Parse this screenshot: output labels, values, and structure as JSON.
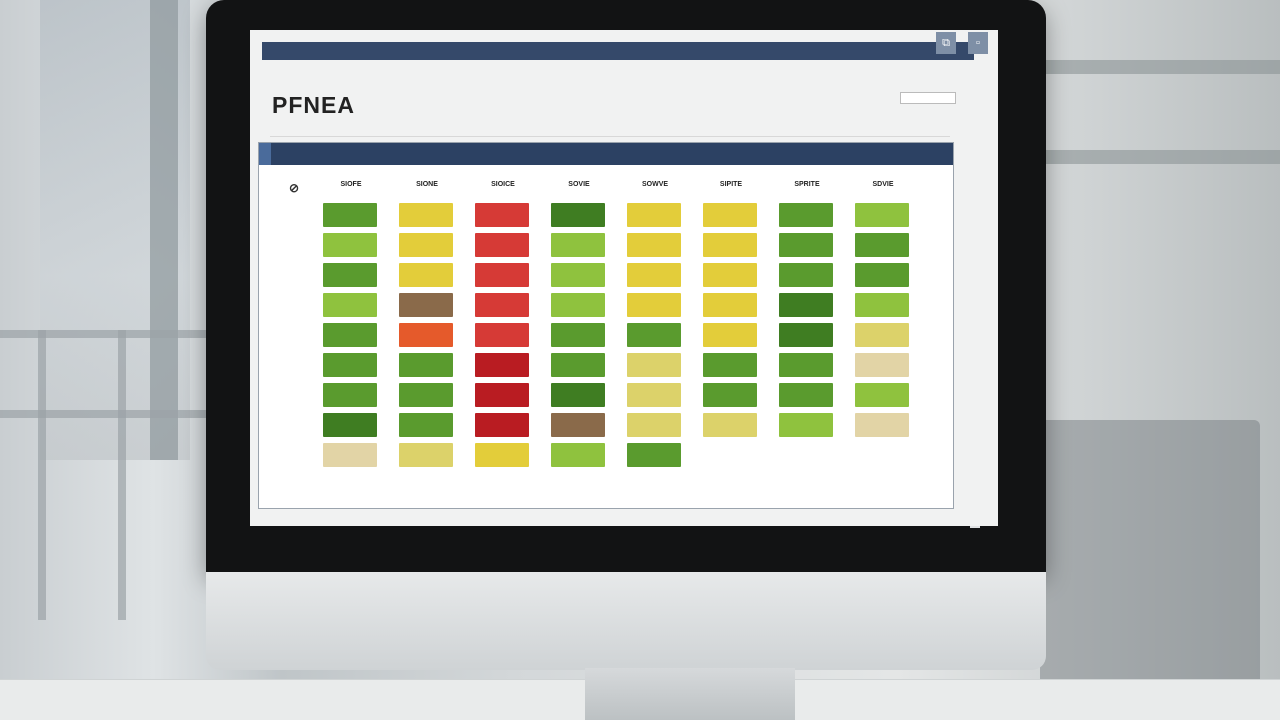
{
  "app": {
    "title": "PFNEA",
    "subtitle": "",
    "topbar_text": "",
    "right_label": "",
    "right_note": ""
  },
  "panel": {
    "tabs": [
      "",
      "",
      ""
    ]
  },
  "columns": [
    "SIOFE",
    "SIONE",
    "SIOICE",
    "SOVIE",
    "SOWVE",
    "SIPITE",
    "SPRITE",
    "SDVIE"
  ],
  "rows": [
    "",
    "",
    "",
    "",
    "",
    "",
    "",
    "",
    ""
  ],
  "grid": [
    [
      "c-green",
      "c-lgreen",
      "c-green",
      "c-lgreen",
      "c-green",
      "c-green",
      "c-green",
      "c-dgreen",
      "c-tan"
    ],
    [
      "c-yellow",
      "c-yellow",
      "c-yellow",
      "c-brown",
      "c-orange",
      "c-green",
      "c-green",
      "c-green",
      "c-lyellow"
    ],
    [
      "c-red",
      "c-red",
      "c-red",
      "c-red",
      "c-red",
      "c-dred",
      "c-dred",
      "c-dred",
      "c-yellow"
    ],
    [
      "c-dgreen",
      "c-lgreen",
      "c-lgreen",
      "c-lgreen",
      "c-green",
      "c-green",
      "c-dgreen",
      "c-brown",
      "c-lgreen"
    ],
    [
      "c-yellow",
      "c-yellow",
      "c-yellow",
      "c-yellow",
      "c-green",
      "c-lyellow",
      "c-lyellow",
      "c-lyellow",
      "c-green"
    ],
    [
      "c-yellow",
      "c-yellow",
      "c-yellow",
      "c-yellow",
      "c-yellow",
      "c-green",
      "c-green",
      "c-lyellow",
      ""
    ],
    [
      "c-green",
      "c-green",
      "c-green",
      "c-dgreen",
      "c-dgreen",
      "c-green",
      "c-green",
      "c-lgreen",
      ""
    ],
    [
      "c-lgreen",
      "c-green",
      "c-green",
      "c-lgreen",
      "c-lyellow",
      "c-tan",
      "c-lgreen",
      "c-tan",
      ""
    ]
  ],
  "legend": [
    {
      "label": "",
      "color": "#e3cd3a"
    },
    {
      "label": "",
      "color": "#8a6a4a"
    },
    {
      "label": "",
      "color": "#5a9b2e"
    },
    {
      "label": "",
      "color": "#d63a36"
    }
  ]
}
